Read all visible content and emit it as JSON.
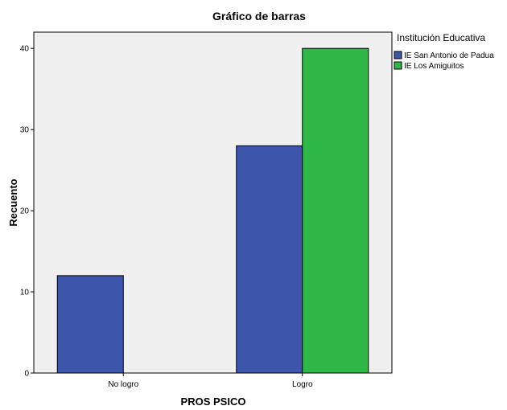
{
  "chart_data": {
    "type": "bar",
    "title": "Gráfico de barras",
    "xlabel": "PROS PSICO",
    "ylabel": "Recuento",
    "categories": [
      "No logro",
      "Logro"
    ],
    "series": [
      {
        "name": "IE San Antonio de Padua",
        "values": [
          12,
          28
        ],
        "color": "#3d56ac"
      },
      {
        "name": "IE Los Amiguitos",
        "values": [
          0,
          40
        ],
        "color": "#2fb847"
      }
    ],
    "ylim": [
      0,
      42
    ],
    "yticks": [
      0,
      10,
      20,
      30,
      40
    ],
    "grid": false,
    "plot_background": "#f0f0f0",
    "legend": {
      "title": "Institución Educativa",
      "placement": "right"
    }
  }
}
